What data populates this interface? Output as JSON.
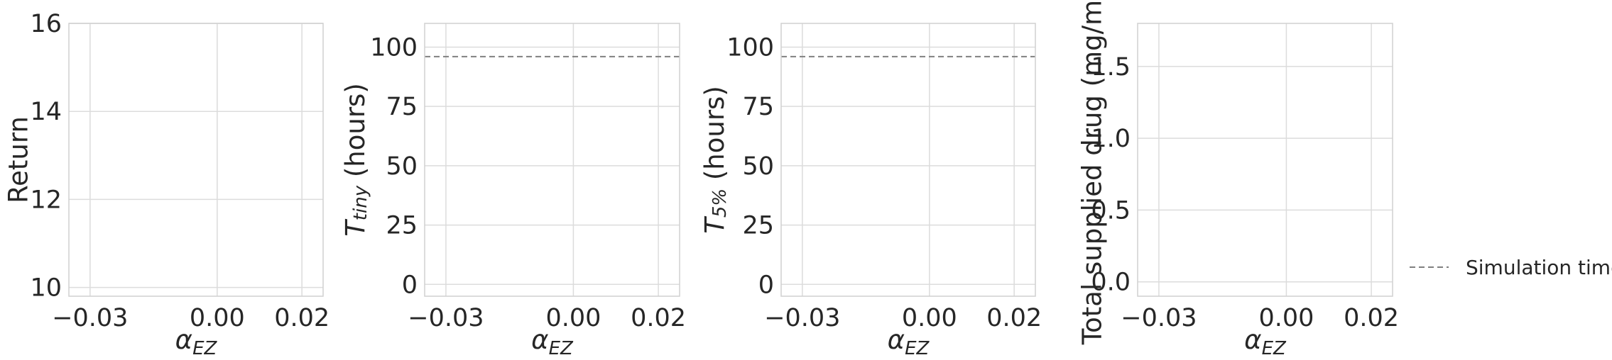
{
  "chart_data": [
    {
      "type": "line",
      "xlabel": {
        "main": "α",
        "sub": "EZ"
      },
      "ylabel": "Return",
      "xlim": [
        -0.035,
        0.025
      ],
      "ylim": [
        9.8,
        16.0
      ],
      "x_ticks": [
        -0.03,
        0.0,
        0.02
      ],
      "x_tick_labels": [
        "−0.03",
        "0.00",
        "0.02"
      ],
      "y_ticks": [
        10,
        12,
        14,
        16
      ],
      "y_tick_labels": [
        "10",
        "12",
        "14",
        "16"
      ],
      "grid": true,
      "series": []
    },
    {
      "type": "line",
      "xlabel": {
        "main": "α",
        "sub": "EZ"
      },
      "ylabel": {
        "main": "T",
        "sub": "tiny",
        "suffix": " (hours)"
      },
      "xlim": [
        -0.035,
        0.025
      ],
      "ylim": [
        -5,
        110
      ],
      "x_ticks": [
        -0.03,
        0.0,
        0.02
      ],
      "x_tick_labels": [
        "−0.03",
        "0.00",
        "0.02"
      ],
      "y_ticks": [
        0,
        25,
        50,
        75,
        100
      ],
      "y_tick_labels": [
        "0",
        "25",
        "50",
        "75",
        "100"
      ],
      "grid": true,
      "reference_lines": [
        {
          "y": 96,
          "style": "dashed",
          "color": "#808080"
        }
      ],
      "series": []
    },
    {
      "type": "line",
      "xlabel": {
        "main": "α",
        "sub": "EZ"
      },
      "ylabel": {
        "main": "T",
        "sub": "5%",
        "suffix": " (hours)"
      },
      "xlim": [
        -0.035,
        0.025
      ],
      "ylim": [
        -5,
        110
      ],
      "x_ticks": [
        -0.03,
        0.0,
        0.02
      ],
      "x_tick_labels": [
        "−0.03",
        "0.00",
        "0.02"
      ],
      "y_ticks": [
        0,
        25,
        50,
        75,
        100
      ],
      "y_tick_labels": [
        "0",
        "25",
        "50",
        "75",
        "100"
      ],
      "grid": true,
      "reference_lines": [
        {
          "y": 96,
          "style": "dashed",
          "color": "#808080"
        }
      ],
      "series": []
    },
    {
      "type": "line",
      "xlabel": {
        "main": "α",
        "sub": "EZ"
      },
      "ylabel": "Total supplied drug (mg/mL)",
      "xlim": [
        -0.035,
        0.025
      ],
      "ylim": [
        -0.1,
        1.8
      ],
      "x_ticks": [
        -0.03,
        0.0,
        0.02
      ],
      "x_tick_labels": [
        "−0.03",
        "0.00",
        "0.02"
      ],
      "y_ticks": [
        0.0,
        0.5,
        1.0,
        1.5
      ],
      "y_tick_labels": [
        "0.0",
        "0.5",
        "1.0",
        "1.5"
      ],
      "grid": true,
      "series": []
    }
  ],
  "legend": {
    "placement": "right",
    "entries": [
      {
        "label": "Simulation time",
        "style": "dashed",
        "color": "#808080"
      }
    ]
  }
}
